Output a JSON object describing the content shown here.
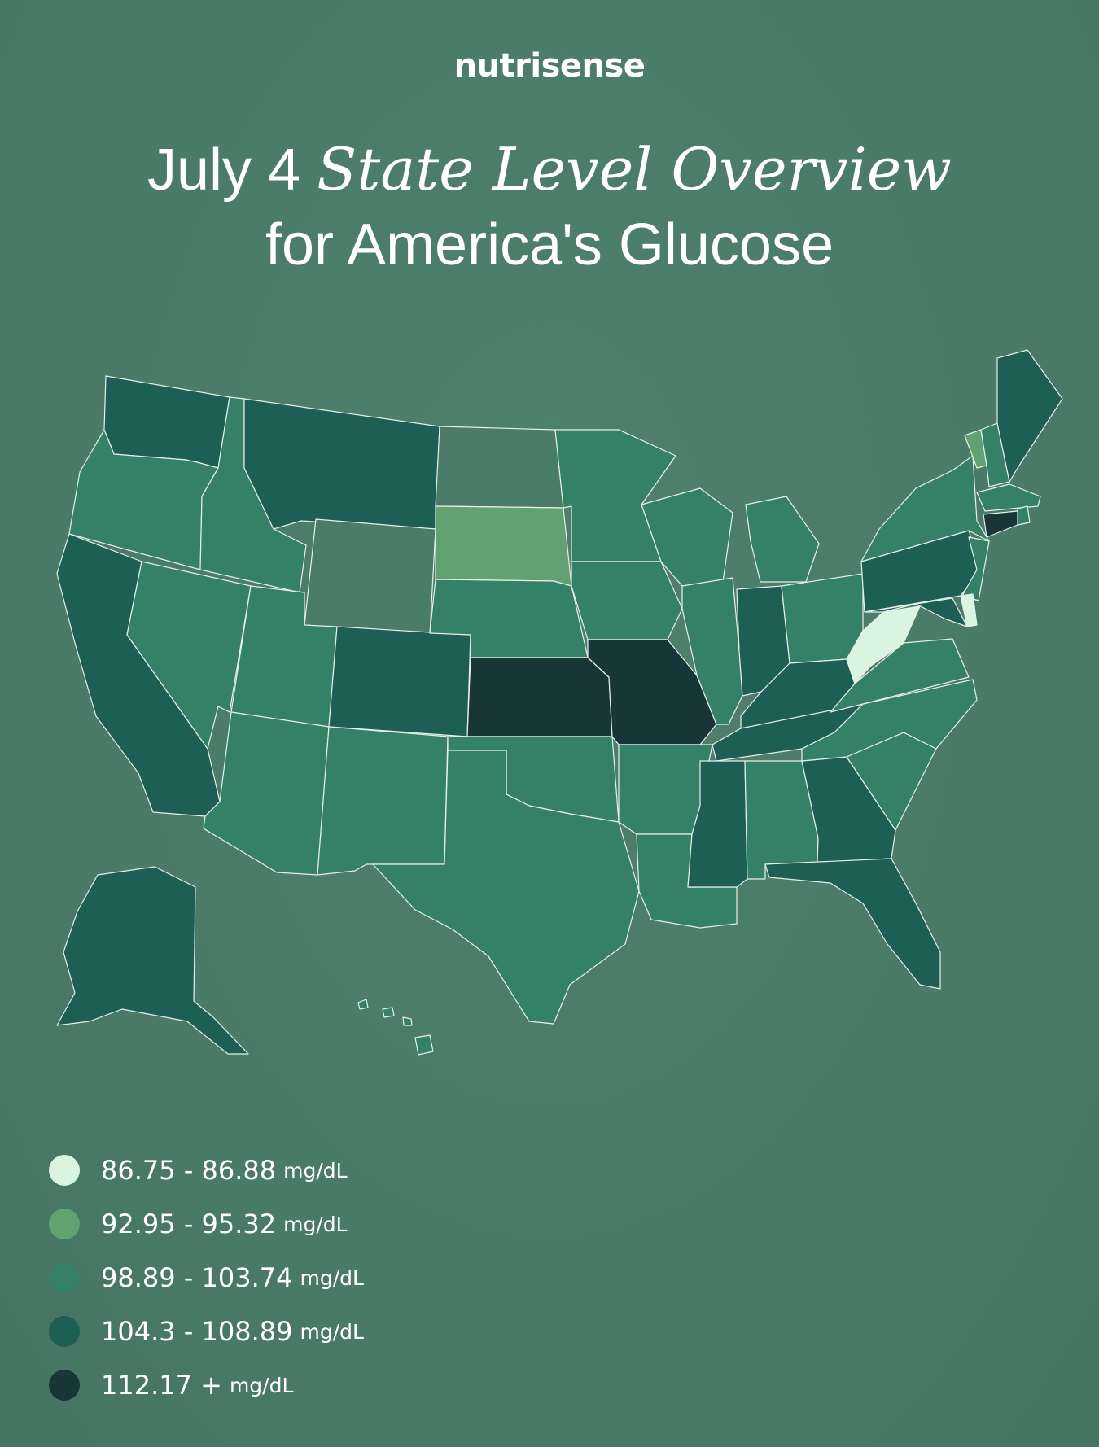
{
  "brand": {
    "logo_text": "nutrisense"
  },
  "title": {
    "prefix": "July 4",
    "italic": "State Level Overview",
    "line2": "for America's Glucose"
  },
  "colors": {
    "background": "#4b7c6a",
    "level_1": "#d9f5e0",
    "level_2": "#62a272",
    "level_3": "#358167",
    "level_4": "#1d5e55",
    "level_5": "#183637"
  },
  "legend": [
    {
      "range": "86.75 - 86.88",
      "unit": "mg/dL",
      "level": "level_1"
    },
    {
      "range": "92.95 - 95.32",
      "unit": "mg/dL",
      "level": "level_2"
    },
    {
      "range": "98.89 - 103.74",
      "unit": "mg/dL",
      "level": "level_3"
    },
    {
      "range": "104.3 - 108.89",
      "unit": "mg/dL",
      "level": "level_4"
    },
    {
      "range": "112.17 +",
      "unit": "mg/dL",
      "level": "level_5"
    }
  ],
  "states": {
    "WA": "level_4",
    "OR": "level_3",
    "CA": "level_4",
    "ID": "level_3",
    "NV": "level_3",
    "MT": "level_4",
    "WY": "none",
    "UT": "level_3",
    "AZ": "level_3",
    "CO": "level_4",
    "NM": "level_3",
    "ND": "none",
    "SD": "level_2",
    "NE": "level_3",
    "KS": "level_5",
    "OK": "level_3",
    "TX": "level_3",
    "MN": "level_3",
    "IA": "level_3",
    "MO": "level_5",
    "AR": "level_3",
    "LA": "level_3",
    "WI": "level_3",
    "IL": "level_3",
    "MI": "level_3",
    "IN": "level_4",
    "OH": "level_3",
    "KY": "level_4",
    "TN": "level_4",
    "MS": "level_4",
    "AL": "level_3",
    "GA": "level_4",
    "FL": "level_4",
    "SC": "level_3",
    "NC": "level_3",
    "VA": "level_3",
    "WV": "level_1",
    "PA": "level_4",
    "NY": "level_3",
    "VT": "level_2",
    "NH": "level_3",
    "ME": "level_4",
    "MA": "level_3",
    "RI": "level_3",
    "CT": "level_5",
    "NJ": "level_3",
    "DE": "level_1",
    "MD": "level_4",
    "AK": "level_4",
    "HI": "level_3"
  }
}
